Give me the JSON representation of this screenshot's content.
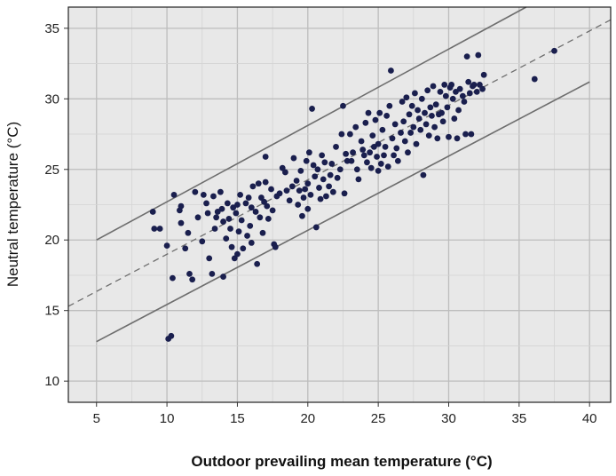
{
  "chart_data": {
    "type": "scatter",
    "title": "",
    "xlabel": "Outdoor prevailing mean temperature (°C)",
    "ylabel": "Neutral temperature (°C)",
    "xlim": [
      3,
      41.5
    ],
    "ylim": [
      8.5,
      36.5
    ],
    "xticks": [
      5,
      10,
      15,
      20,
      25,
      30,
      35,
      40
    ],
    "yticks": [
      10,
      15,
      20,
      25,
      30,
      35
    ],
    "grid": true,
    "colors": {
      "background": "#e8e8e8",
      "grid": "#bdbdbd",
      "points": "#1a1f4e",
      "lines": "#6e6e6e"
    },
    "lines": [
      {
        "style": "solid",
        "x": [
          5,
          35.5
        ],
        "y": [
          20.0,
          36.5
        ]
      },
      {
        "style": "dashed",
        "x": [
          3,
          41.5
        ],
        "y": [
          15.3,
          35.6
        ]
      },
      {
        "style": "solid",
        "x": [
          5,
          40
        ],
        "y": [
          12.8,
          31.2
        ]
      }
    ],
    "series": [
      {
        "points": [
          [
            9.0,
            22.0
          ],
          [
            9.1,
            20.8
          ],
          [
            9.5,
            20.8
          ],
          [
            10.0,
            19.6
          ],
          [
            10.1,
            13.0
          ],
          [
            10.3,
            13.2
          ],
          [
            10.4,
            17.3
          ],
          [
            10.5,
            23.2
          ],
          [
            10.9,
            22.1
          ],
          [
            11.0,
            22.4
          ],
          [
            11.0,
            21.2
          ],
          [
            11.3,
            19.4
          ],
          [
            11.5,
            20.5
          ],
          [
            11.6,
            17.6
          ],
          [
            11.8,
            17.2
          ],
          [
            12.0,
            23.4
          ],
          [
            12.2,
            21.6
          ],
          [
            12.5,
            19.9
          ],
          [
            12.6,
            23.2
          ],
          [
            12.8,
            22.6
          ],
          [
            12.9,
            21.9
          ],
          [
            13.0,
            18.7
          ],
          [
            13.2,
            17.6
          ],
          [
            13.3,
            23.1
          ],
          [
            13.4,
            20.8
          ],
          [
            13.5,
            21.6
          ],
          [
            13.6,
            22.0
          ],
          [
            13.8,
            23.4
          ],
          [
            13.9,
            22.2
          ],
          [
            14.0,
            21.3
          ],
          [
            14.0,
            17.4
          ],
          [
            14.2,
            20.1
          ],
          [
            14.3,
            22.6
          ],
          [
            14.4,
            21.5
          ],
          [
            14.5,
            20.8
          ],
          [
            14.6,
            19.5
          ],
          [
            14.7,
            22.3
          ],
          [
            14.8,
            18.7
          ],
          [
            14.9,
            21.9
          ],
          [
            15.0,
            22.5
          ],
          [
            15.0,
            19.0
          ],
          [
            15.1,
            20.6
          ],
          [
            15.2,
            23.2
          ],
          [
            15.3,
            21.4
          ],
          [
            15.4,
            19.4
          ],
          [
            15.6,
            22.6
          ],
          [
            15.7,
            20.3
          ],
          [
            15.8,
            23.0
          ],
          [
            15.9,
            21.0
          ],
          [
            16.0,
            22.3
          ],
          [
            16.0,
            19.8
          ],
          [
            16.1,
            23.8
          ],
          [
            16.3,
            22.0
          ],
          [
            16.4,
            18.3
          ],
          [
            16.5,
            24.0
          ],
          [
            16.6,
            21.6
          ],
          [
            16.7,
            23.0
          ],
          [
            16.8,
            20.5
          ],
          [
            16.9,
            22.7
          ],
          [
            17.0,
            24.1
          ],
          [
            17.0,
            25.9
          ],
          [
            17.1,
            22.4
          ],
          [
            17.2,
            21.5
          ],
          [
            17.4,
            23.6
          ],
          [
            17.5,
            22.1
          ],
          [
            17.6,
            19.7
          ],
          [
            17.7,
            19.5
          ],
          [
            17.8,
            23.1
          ],
          [
            18.0,
            23.3
          ],
          [
            18.2,
            25.1
          ],
          [
            18.4,
            24.8
          ],
          [
            18.5,
            23.5
          ],
          [
            18.7,
            22.8
          ],
          [
            18.9,
            23.8
          ],
          [
            19.0,
            25.8
          ],
          [
            19.2,
            24.2
          ],
          [
            19.3,
            22.5
          ],
          [
            19.4,
            23.5
          ],
          [
            19.5,
            24.9
          ],
          [
            19.6,
            21.7
          ],
          [
            19.7,
            23.0
          ],
          [
            19.8,
            23.6
          ],
          [
            19.9,
            25.6
          ],
          [
            20.0,
            24.0
          ],
          [
            20.0,
            22.2
          ],
          [
            20.1,
            26.2
          ],
          [
            20.2,
            23.2
          ],
          [
            20.3,
            29.3
          ],
          [
            20.4,
            25.3
          ],
          [
            20.5,
            24.5
          ],
          [
            20.6,
            20.9
          ],
          [
            20.7,
            25.0
          ],
          [
            20.8,
            23.7
          ],
          [
            20.9,
            22.9
          ],
          [
            21.0,
            26.0
          ],
          [
            21.1,
            24.3
          ],
          [
            21.2,
            25.5
          ],
          [
            21.3,
            23.1
          ],
          [
            21.5,
            23.8
          ],
          [
            21.6,
            24.6
          ],
          [
            21.7,
            25.4
          ],
          [
            21.8,
            23.4
          ],
          [
            22.0,
            26.6
          ],
          [
            22.1,
            24.4
          ],
          [
            22.3,
            25.0
          ],
          [
            22.4,
            27.5
          ],
          [
            22.5,
            29.5
          ],
          [
            22.6,
            23.3
          ],
          [
            22.7,
            26.1
          ],
          [
            22.8,
            25.6
          ],
          [
            23.0,
            27.5
          ],
          [
            23.1,
            25.6
          ],
          [
            23.2,
            26.2
          ],
          [
            23.4,
            28.0
          ],
          [
            23.5,
            25.0
          ],
          [
            23.6,
            24.3
          ],
          [
            23.8,
            27.0
          ],
          [
            23.9,
            26.4
          ],
          [
            24.0,
            26.0
          ],
          [
            24.1,
            28.3
          ],
          [
            24.2,
            25.5
          ],
          [
            24.3,
            29.0
          ],
          [
            24.4,
            26.2
          ],
          [
            24.5,
            25.1
          ],
          [
            24.6,
            27.4
          ],
          [
            24.7,
            26.6
          ],
          [
            24.8,
            28.5
          ],
          [
            24.9,
            25.9
          ],
          [
            25.0,
            24.9
          ],
          [
            25.0,
            26.8
          ],
          [
            25.1,
            29.0
          ],
          [
            25.2,
            25.4
          ],
          [
            25.3,
            27.8
          ],
          [
            25.4,
            26.0
          ],
          [
            25.5,
            26.6
          ],
          [
            25.6,
            28.8
          ],
          [
            25.7,
            25.2
          ],
          [
            25.8,
            29.5
          ],
          [
            25.9,
            32.0
          ],
          [
            26.0,
            27.2
          ],
          [
            26.1,
            26.0
          ],
          [
            26.2,
            28.2
          ],
          [
            26.3,
            26.5
          ],
          [
            26.4,
            25.6
          ],
          [
            26.6,
            27.6
          ],
          [
            26.7,
            29.8
          ],
          [
            26.8,
            28.4
          ],
          [
            26.9,
            27.0
          ],
          [
            27.0,
            30.1
          ],
          [
            27.1,
            26.2
          ],
          [
            27.2,
            28.9
          ],
          [
            27.3,
            27.6
          ],
          [
            27.4,
            29.5
          ],
          [
            27.5,
            28.0
          ],
          [
            27.6,
            30.4
          ],
          [
            27.7,
            26.8
          ],
          [
            27.8,
            29.2
          ],
          [
            27.9,
            28.6
          ],
          [
            28.0,
            27.8
          ],
          [
            28.1,
            30.0
          ],
          [
            28.2,
            24.6
          ],
          [
            28.3,
            29.0
          ],
          [
            28.4,
            28.2
          ],
          [
            28.5,
            30.6
          ],
          [
            28.6,
            27.4
          ],
          [
            28.7,
            29.4
          ],
          [
            28.8,
            28.8
          ],
          [
            28.9,
            30.9
          ],
          [
            29.0,
            28.0
          ],
          [
            29.1,
            29.6
          ],
          [
            29.2,
            27.2
          ],
          [
            29.3,
            28.9
          ],
          [
            29.4,
            30.5
          ],
          [
            29.5,
            29.0
          ],
          [
            29.6,
            28.4
          ],
          [
            29.7,
            31.0
          ],
          [
            29.8,
            30.2
          ],
          [
            29.9,
            29.4
          ],
          [
            30.0,
            27.3
          ],
          [
            30.1,
            30.8
          ],
          [
            30.2,
            31.0
          ],
          [
            30.3,
            30.0
          ],
          [
            30.4,
            28.6
          ],
          [
            30.5,
            30.5
          ],
          [
            30.6,
            27.2
          ],
          [
            30.7,
            29.2
          ],
          [
            30.8,
            30.7
          ],
          [
            31.0,
            30.2
          ],
          [
            31.1,
            29.8
          ],
          [
            31.2,
            27.5
          ],
          [
            31.3,
            33.0
          ],
          [
            31.4,
            31.2
          ],
          [
            31.5,
            30.4
          ],
          [
            31.6,
            27.5
          ],
          [
            31.7,
            30.9
          ],
          [
            31.8,
            31.0
          ],
          [
            32.0,
            30.5
          ],
          [
            32.1,
            33.1
          ],
          [
            32.2,
            31.0
          ],
          [
            32.4,
            30.7
          ],
          [
            32.5,
            31.7
          ],
          [
            36.1,
            31.4
          ],
          [
            37.5,
            33.4
          ]
        ]
      }
    ]
  }
}
